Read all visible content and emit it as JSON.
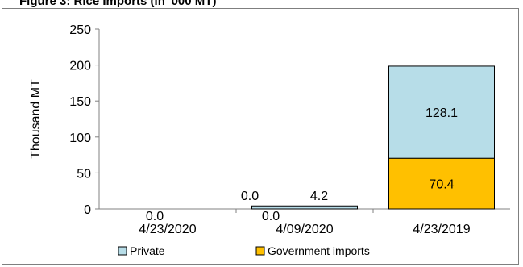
{
  "figure_title": "Figure 3: Rice Imports (in '000 MT)",
  "colors": {
    "private": "#b7dde8",
    "government": "#ffc000",
    "axis": "#808080",
    "bar_stroke": "#000000"
  },
  "chart_data": {
    "type": "bar",
    "stacked": true,
    "ylabel": "Thousand MT",
    "ylim": [
      0,
      250
    ],
    "yticks": [
      0,
      50,
      100,
      150,
      200,
      250
    ],
    "grid": false,
    "legend_position": "bottom",
    "categories": [
      "4/23/2020",
      "4/09/2020",
      "4/23/2019"
    ],
    "series": [
      {
        "name": "Government imports",
        "key": "government",
        "values": [
          0.0,
          0.0,
          70.4
        ],
        "labels": [
          "0.0",
          "0.0",
          "70.4"
        ]
      },
      {
        "name": "Private",
        "key": "private",
        "values": [
          0.0,
          4.2,
          128.1
        ],
        "labels": [
          "0.0",
          "4.2",
          "128.1"
        ]
      }
    ],
    "legend_order": [
      "Private",
      "Government imports"
    ]
  }
}
